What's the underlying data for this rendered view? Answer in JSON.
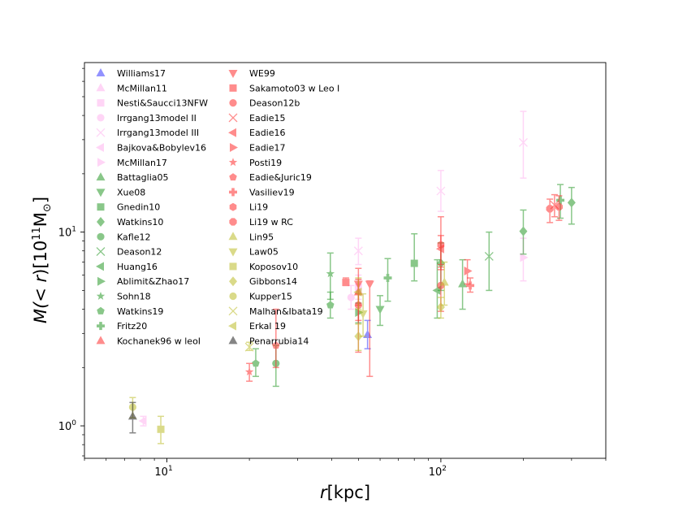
{
  "chart_data": {
    "type": "scatter",
    "xscale": "log",
    "yscale": "log",
    "xlim": [
      5,
      400
    ],
    "ylim": [
      0.68,
      75
    ],
    "xlabel_parts": [
      "r",
      "[kpc]"
    ],
    "ylabel_parts": [
      "M(",
      "< r",
      ")[10",
      "11",
      "M",
      "⊙",
      "]"
    ],
    "xticks": [
      {
        "value": 10,
        "base": "10",
        "exp": "1"
      },
      {
        "value": 100,
        "base": "10",
        "exp": "2"
      }
    ],
    "yticks": [
      {
        "value": 1,
        "base": "10",
        "exp": "0"
      },
      {
        "value": 10,
        "base": "10",
        "exp": "1"
      }
    ],
    "legend_position": "upper-left",
    "colors": {
      "blue": "#3a3aff",
      "pink": "#ffb3f0",
      "green": "#2a9a2a",
      "red": "#ff3030",
      "olive": "#bdbd2a",
      "black": "#222222"
    },
    "series": [
      {
        "name": "Williams17",
        "color": "blue",
        "marker": "triangle-up",
        "points": [
          {
            "x": 54,
            "y": 2.95,
            "ylo": 2.5,
            "yhi": 3.5
          }
        ]
      },
      {
        "name": "McMillan11",
        "color": "pink",
        "marker": "triangle-up",
        "points": [
          {
            "x": 50,
            "y": 5.0,
            "ylo": 4.3,
            "yhi": 5.7
          }
        ]
      },
      {
        "name": "Nesti&Saucci13NFW",
        "color": "pink",
        "marker": "square",
        "points": [
          {
            "x": 50,
            "y": 5.2,
            "ylo": 4.5,
            "yhi": 6.0
          }
        ]
      },
      {
        "name": "Irrgang13model II",
        "color": "pink",
        "marker": "circle",
        "points": [
          {
            "x": 47,
            "y": 4.6,
            "ylo": 4.0,
            "yhi": 5.3
          }
        ]
      },
      {
        "name": "Irrgang13model III",
        "color": "pink",
        "marker": "x",
        "points": [
          {
            "x": 50,
            "y": 8.0,
            "ylo": 6.8,
            "yhi": 9.3
          },
          {
            "x": 100,
            "y": 16.3,
            "ylo": 12.8,
            "yhi": 20.8
          },
          {
            "x": 200,
            "y": 29.0,
            "ylo": 19.0,
            "yhi": 42.0
          }
        ]
      },
      {
        "name": "Bajkova&Bobylev16",
        "color": "pink",
        "marker": "triangle-left",
        "points": [
          {
            "x": 8.2,
            "y": 1.06,
            "ylo": 1.0,
            "yhi": 1.12
          }
        ]
      },
      {
        "name": "McMillan17",
        "color": "pink",
        "marker": "triangle-right",
        "points": [
          {
            "x": 200,
            "y": 7.4,
            "ylo": 5.6,
            "yhi": 9.3
          }
        ]
      },
      {
        "name": "Battaglia05",
        "color": "green",
        "marker": "triangle-up",
        "points": [
          {
            "x": 120,
            "y": 5.4,
            "ylo": 4.0,
            "yhi": 7.2
          }
        ]
      },
      {
        "name": "Xue08",
        "color": "green",
        "marker": "triangle-down",
        "points": [
          {
            "x": 60,
            "y": 4.0,
            "ylo": 3.3,
            "yhi": 4.7
          }
        ]
      },
      {
        "name": "Gnedin10",
        "color": "green",
        "marker": "square",
        "points": [
          {
            "x": 80,
            "y": 6.9,
            "ylo": 5.6,
            "yhi": 9.8
          }
        ]
      },
      {
        "name": "Watkins10",
        "color": "green",
        "marker": "diamond",
        "points": [
          {
            "x": 100,
            "y": 6.9,
            "ylo": 5.0,
            "yhi": 8.8
          },
          {
            "x": 200,
            "y": 10.1,
            "ylo": 7.7,
            "yhi": 13.0
          },
          {
            "x": 300,
            "y": 14.2,
            "ylo": 11.0,
            "yhi": 17.0
          }
        ]
      },
      {
        "name": "Kafle12",
        "color": "green",
        "marker": "circle",
        "points": [
          {
            "x": 25,
            "y": 2.1,
            "ylo": 1.6,
            "yhi": 2.6
          }
        ]
      },
      {
        "name": "Deason12",
        "color": "green",
        "marker": "x",
        "points": [
          {
            "x": 150,
            "y": 7.5,
            "ylo": 5.0,
            "yhi": 10.0
          }
        ]
      },
      {
        "name": "Huang16",
        "color": "green",
        "marker": "triangle-left",
        "points": [
          {
            "x": 97,
            "y": 5.0,
            "ylo": 3.6,
            "yhi": 7.2
          }
        ]
      },
      {
        "name": "Ablimit&Zhao17",
        "color": "green",
        "marker": "triangle-right",
        "points": [
          {
            "x": 50,
            "y": 3.85,
            "ylo": 3.4,
            "yhi": 4.3
          }
        ]
      },
      {
        "name": "Sohn18",
        "color": "green",
        "marker": "star",
        "points": [
          {
            "x": 39.5,
            "y": 6.1,
            "ylo": 4.5,
            "yhi": 7.8
          }
        ]
      },
      {
        "name": "Watkins19",
        "color": "green",
        "marker": "pentagon",
        "points": [
          {
            "x": 21.1,
            "y": 2.1,
            "ylo": 1.8,
            "yhi": 2.5
          },
          {
            "x": 39.5,
            "y": 4.2,
            "ylo": 3.6,
            "yhi": 4.9
          }
        ]
      },
      {
        "name": "Fritz20",
        "color": "green",
        "marker": "plus",
        "points": [
          {
            "x": 64,
            "y": 5.8,
            "ylo": 4.4,
            "yhi": 7.3
          },
          {
            "x": 273,
            "y": 14.6,
            "ylo": 11.8,
            "yhi": 17.6
          }
        ]
      },
      {
        "name": "Kochanek96 w leoI",
        "color": "red",
        "marker": "triangle-up",
        "points": [
          {
            "x": 50,
            "y": 4.9,
            "ylo": 4.2,
            "yhi": 5.7
          }
        ]
      },
      {
        "name": "WE99",
        "color": "red",
        "marker": "triangle-down",
        "points": [
          {
            "x": 50,
            "y": 5.4,
            "ylo": 2.4,
            "yhi": 6.5
          },
          {
            "x": 55,
            "y": 5.4,
            "ylo": 1.8,
            "yhi": 5.6
          }
        ]
      },
      {
        "name": "Sakamoto03 w Leo I",
        "color": "red",
        "marker": "square",
        "points": [
          {
            "x": 45,
            "y": 5.5,
            "ylo": 5.3,
            "yhi": 5.8
          }
        ]
      },
      {
        "name": "Deason12b",
        "color": "red",
        "marker": "circle",
        "points": [
          {
            "x": 50,
            "y": 4.2,
            "ylo": 3.5,
            "yhi": 4.8
          },
          {
            "x": 100,
            "y": 5.3,
            "ylo": 3.9,
            "yhi": 6.6
          }
        ]
      },
      {
        "name": "Eadie15",
        "color": "red",
        "marker": "x",
        "points": [
          {
            "x": 260,
            "y": 13.8,
            "ylo": 12.0,
            "yhi": 15.6
          }
        ]
      },
      {
        "name": "Eadie16",
        "color": "red",
        "marker": "triangle-left",
        "points": [
          {
            "x": 100,
            "y": 8.2,
            "ylo": 6.8,
            "yhi": 9.6
          }
        ]
      },
      {
        "name": "Eadie17",
        "color": "red",
        "marker": "triangle-right",
        "points": [
          {
            "x": 125,
            "y": 6.3,
            "ylo": 5.4,
            "yhi": 7.2
          }
        ]
      },
      {
        "name": "Posti19",
        "color": "red",
        "marker": "star",
        "points": [
          {
            "x": 20,
            "y": 1.9,
            "ylo": 1.7,
            "yhi": 2.1
          }
        ]
      },
      {
        "name": "Eadie&Juric19",
        "color": "red",
        "marker": "pentagon",
        "points": [
          {
            "x": 25,
            "y": 2.6,
            "ylo": 2.0,
            "yhi": 4.0
          }
        ]
      },
      {
        "name": "Vasiliev19",
        "color": "red",
        "marker": "plus",
        "points": [
          {
            "x": 128,
            "y": 5.3,
            "ylo": 4.9,
            "yhi": 5.8
          }
        ]
      },
      {
        "name": "Li19",
        "color": "red",
        "marker": "hexagon",
        "points": [
          {
            "x": 100,
            "y": 8.6,
            "ylo": 6.4,
            "yhi": 12.0
          }
        ]
      },
      {
        "name": "Li19 w RC",
        "color": "red",
        "marker": "octagon",
        "points": [
          {
            "x": 250,
            "y": 13.2,
            "ylo": 11.2,
            "yhi": 14.8
          },
          {
            "x": 270,
            "y": 13.5,
            "ylo": 11.5,
            "yhi": 15.4
          }
        ]
      },
      {
        "name": "Lin95",
        "color": "olive",
        "marker": "triangle-up",
        "points": [
          {
            "x": 103,
            "y": 5.5,
            "ylo": 4.2,
            "yhi": 7.0
          }
        ]
      },
      {
        "name": "Law05",
        "color": "olive",
        "marker": "triangle-down",
        "points": [
          {
            "x": 52,
            "y": 3.8,
            "ylo": 2.9,
            "yhi": 4.8
          }
        ]
      },
      {
        "name": "Koposov10",
        "color": "olive",
        "marker": "square",
        "points": [
          {
            "x": 9.5,
            "y": 0.96,
            "ylo": 0.81,
            "yhi": 1.12
          }
        ]
      },
      {
        "name": "Gibbons14",
        "color": "olive",
        "marker": "diamond",
        "points": [
          {
            "x": 50,
            "y": 2.9,
            "ylo": 2.45,
            "yhi": 3.35
          },
          {
            "x": 100,
            "y": 4.1,
            "ylo": 3.6,
            "yhi": 4.6
          }
        ]
      },
      {
        "name": "Kupper15",
        "color": "olive",
        "marker": "circle",
        "points": [
          {
            "x": 7.5,
            "y": 1.25,
            "ylo": 1.1,
            "yhi": 1.4
          }
        ]
      },
      {
        "name": "Malhan&Ibata19",
        "color": "olive",
        "marker": "x",
        "points": [
          {
            "x": 20,
            "y": 2.55,
            "ylo": 2.45,
            "yhi": 2.7
          }
        ]
      },
      {
        "name": "Erkal 19",
        "color": "olive",
        "marker": "triangle-left",
        "points": [
          {
            "x": 50,
            "y": 4.9,
            "ylo": 4.0,
            "yhi": 5.8
          }
        ]
      },
      {
        "name": "Penarrubia14",
        "color": "black",
        "marker": "triangle-up",
        "points": [
          {
            "x": 7.5,
            "y": 1.12,
            "ylo": 0.92,
            "yhi": 1.32
          }
        ]
      }
    ]
  }
}
